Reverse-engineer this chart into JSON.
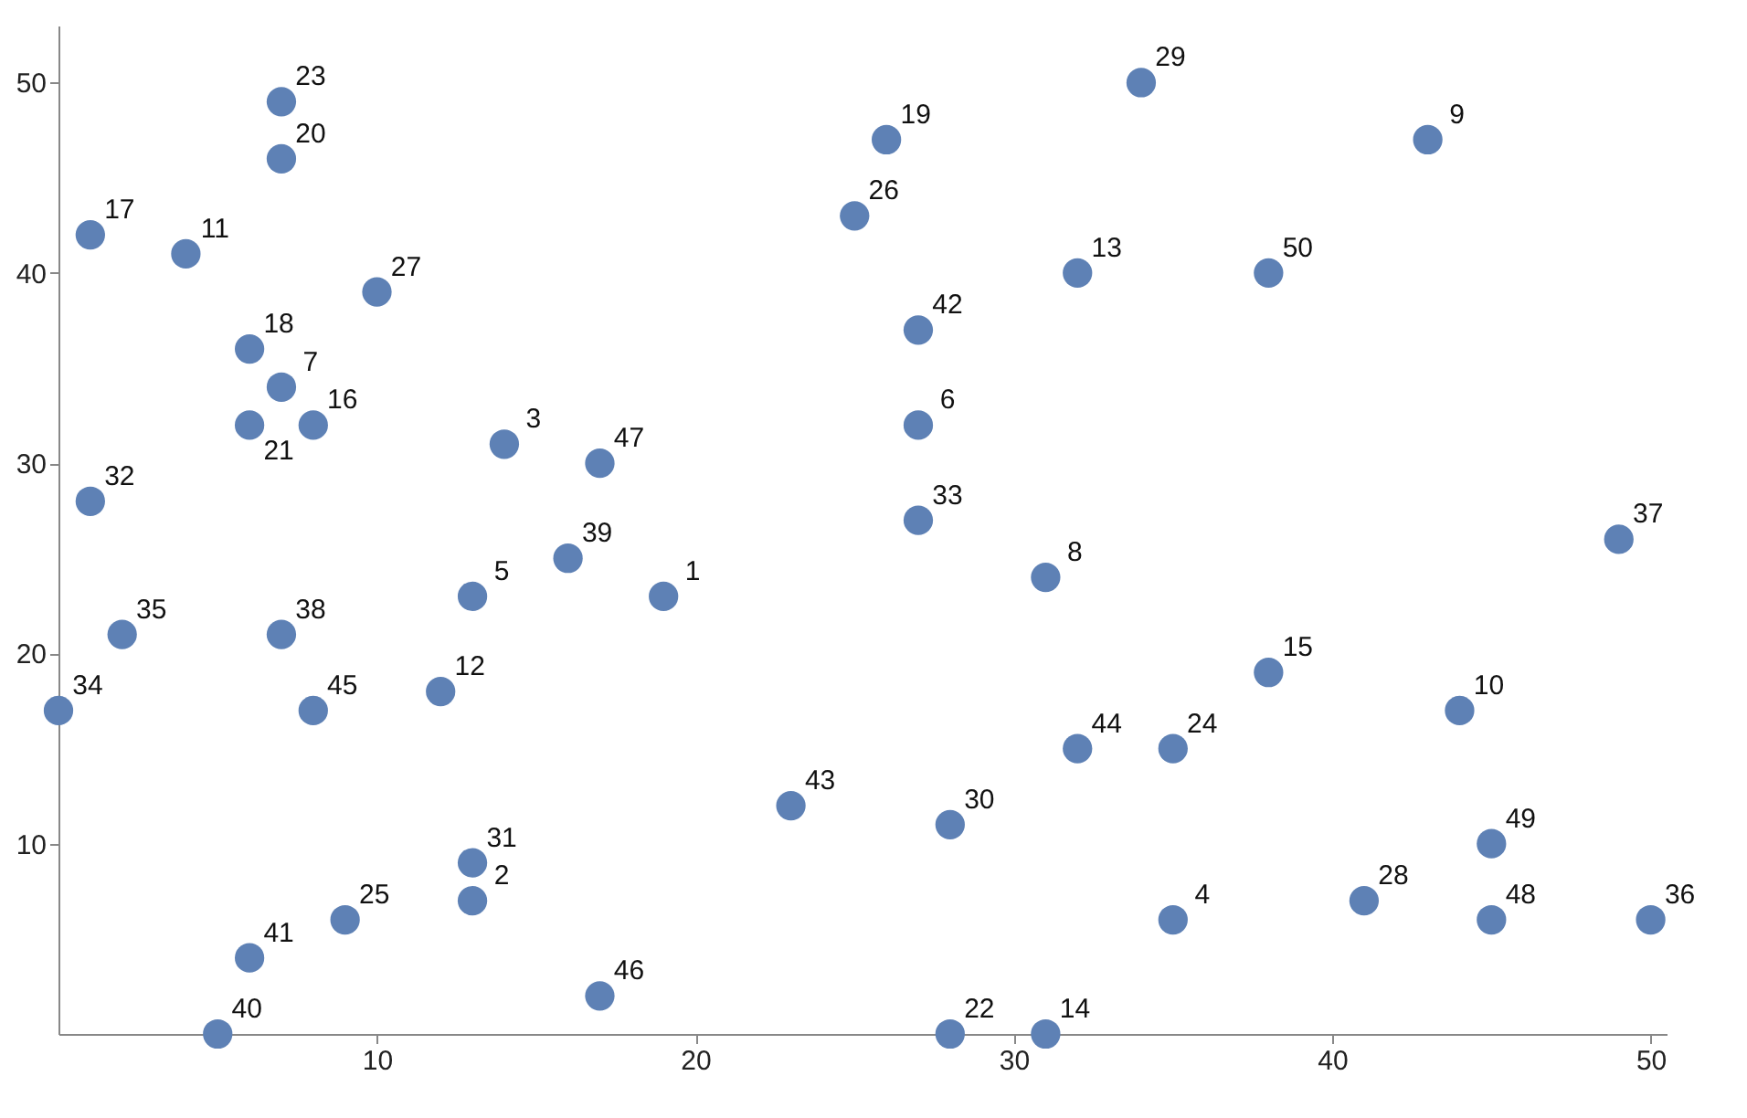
{
  "chart_data": {
    "type": "scatter",
    "color": "#5e81b5",
    "marker": "circle",
    "grid": false,
    "x": [
      19,
      13,
      14,
      35,
      13,
      27,
      7,
      31,
      43,
      44,
      4,
      12,
      32,
      31,
      38,
      8,
      1,
      6,
      26,
      7,
      6,
      28,
      7,
      35,
      9,
      25,
      10,
      41,
      34,
      28,
      13,
      1,
      27,
      0,
      2,
      50,
      49,
      7,
      16,
      5,
      6,
      27,
      23,
      32,
      8,
      17,
      17,
      45,
      45,
      38
    ],
    "values": [
      23,
      7,
      31,
      6,
      23,
      32,
      34,
      24,
      47,
      17,
      41,
      18,
      40,
      0,
      19,
      32,
      42,
      36,
      47,
      46,
      32,
      0,
      49,
      15,
      6,
      43,
      39,
      7,
      50,
      11,
      9,
      28,
      27,
      17,
      21,
      6,
      26,
      21,
      25,
      0,
      4,
      37,
      12,
      15,
      17,
      2,
      30,
      6,
      10,
      40
    ],
    "xlim": [
      0,
      50.5
    ],
    "ylim": [
      0,
      53
    ],
    "xticks": [
      10,
      20,
      30,
      40,
      50
    ],
    "yticks": [
      10,
      20,
      30,
      40,
      50
    ],
    "annotations": [
      {
        "text": "1",
        "x": 19,
        "y": 23
      },
      {
        "text": "2",
        "x": 13,
        "y": 7
      },
      {
        "text": "3",
        "x": 14,
        "y": 31
      },
      {
        "text": "4",
        "x": 35,
        "y": 6
      },
      {
        "text": "5",
        "x": 13,
        "y": 23
      },
      {
        "text": "6",
        "x": 27,
        "y": 32
      },
      {
        "text": "7",
        "x": 7,
        "y": 34
      },
      {
        "text": "8",
        "x": 31,
        "y": 24
      },
      {
        "text": "9",
        "x": 43,
        "y": 47
      },
      {
        "text": "10",
        "x": 44,
        "y": 17
      },
      {
        "text": "11",
        "x": 4,
        "y": 41
      },
      {
        "text": "12",
        "x": 12,
        "y": 18
      },
      {
        "text": "13",
        "x": 32,
        "y": 40
      },
      {
        "text": "14",
        "x": 31,
        "y": 0
      },
      {
        "text": "15",
        "x": 38,
        "y": 19
      },
      {
        "text": "16",
        "x": 8,
        "y": 32
      },
      {
        "text": "17",
        "x": 1,
        "y": 42
      },
      {
        "text": "18",
        "x": 6,
        "y": 36
      },
      {
        "text": "19",
        "x": 26,
        "y": 47
      },
      {
        "text": "20",
        "x": 7,
        "y": 46
      },
      {
        "text": "21",
        "x": 6,
        "y": 32
      },
      {
        "text": "22",
        "x": 28,
        "y": 0
      },
      {
        "text": "23",
        "x": 7,
        "y": 49
      },
      {
        "text": "24",
        "x": 35,
        "y": 15
      },
      {
        "text": "25",
        "x": 9,
        "y": 6
      },
      {
        "text": "26",
        "x": 25,
        "y": 43
      },
      {
        "text": "27",
        "x": 10,
        "y": 39
      },
      {
        "text": "28",
        "x": 41,
        "y": 7
      },
      {
        "text": "29",
        "x": 34,
        "y": 50
      },
      {
        "text": "30",
        "x": 28,
        "y": 11
      },
      {
        "text": "31",
        "x": 13,
        "y": 9
      },
      {
        "text": "32",
        "x": 1,
        "y": 28
      },
      {
        "text": "33",
        "x": 27,
        "y": 27
      },
      {
        "text": "34",
        "x": 0,
        "y": 17
      },
      {
        "text": "35",
        "x": 2,
        "y": 21
      },
      {
        "text": "36",
        "x": 50,
        "y": 6
      },
      {
        "text": "37",
        "x": 49,
        "y": 26
      },
      {
        "text": "38",
        "x": 7,
        "y": 21
      },
      {
        "text": "39",
        "x": 16,
        "y": 25
      },
      {
        "text": "40",
        "x": 5,
        "y": 0
      },
      {
        "text": "41",
        "x": 6,
        "y": 4
      },
      {
        "text": "42",
        "x": 27,
        "y": 37
      },
      {
        "text": "43",
        "x": 23,
        "y": 12
      },
      {
        "text": "44",
        "x": 32,
        "y": 15
      },
      {
        "text": "45",
        "x": 8,
        "y": 17
      },
      {
        "text": "46",
        "x": 17,
        "y": 2
      },
      {
        "text": "47",
        "x": 17,
        "y": 30
      },
      {
        "text": "48",
        "x": 45,
        "y": 6
      },
      {
        "text": "49",
        "x": 45,
        "y": 10
      },
      {
        "text": "50",
        "x": 38,
        "y": 40
      }
    ]
  }
}
